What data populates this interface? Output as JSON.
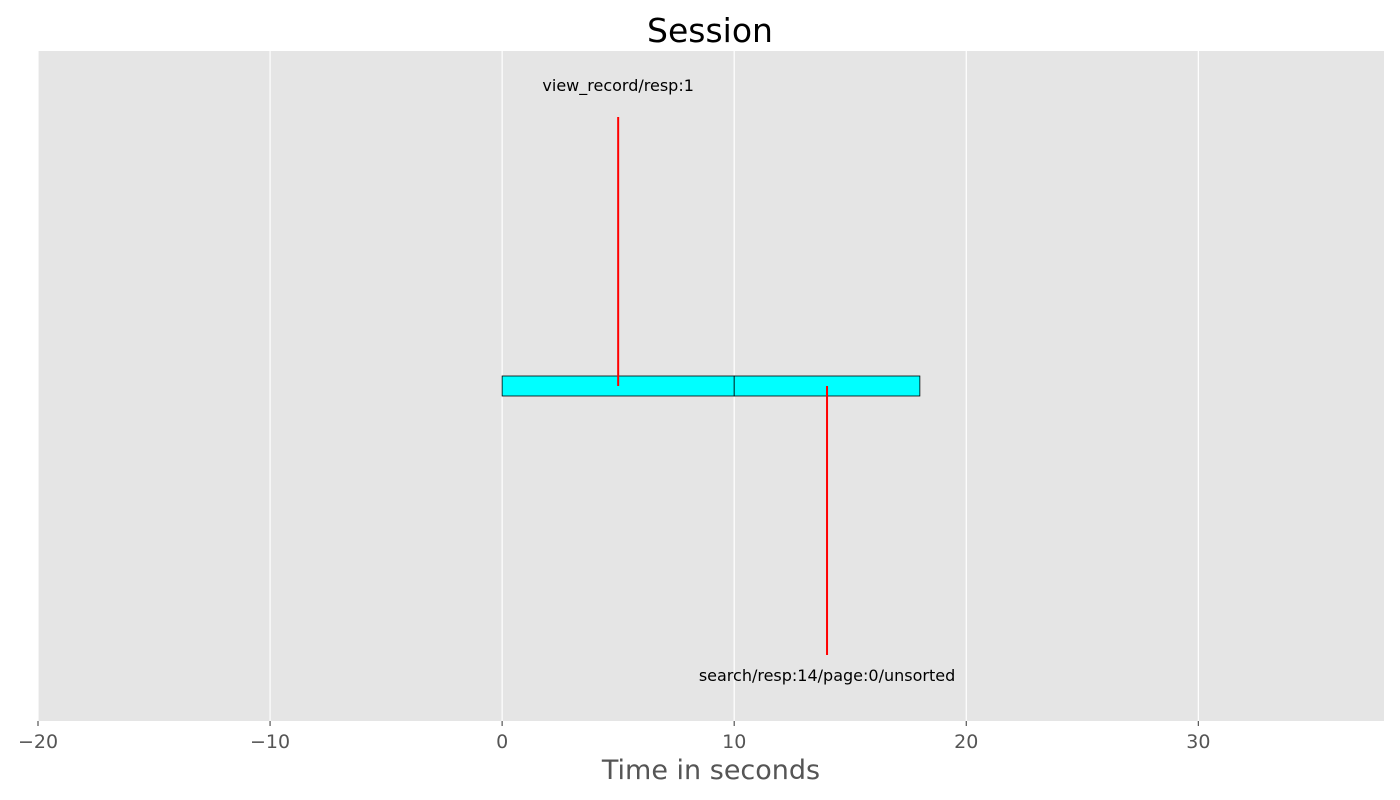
{
  "chart_data": {
    "type": "timeline",
    "title": "Session",
    "xlabel": "Time in seconds",
    "ylabel": "",
    "xlim": [
      -20,
      38
    ],
    "xticks": [
      -20,
      -10,
      0,
      10,
      20,
      30
    ],
    "xtick_labels": [
      "−20",
      "−10",
      "0",
      "10",
      "20",
      "30"
    ],
    "grid": true,
    "segments": [
      {
        "start": 0,
        "end": 10
      },
      {
        "start": 10,
        "end": 18
      }
    ],
    "events": [
      {
        "x": 5,
        "label": "view_record/resp:1",
        "direction": "up"
      },
      {
        "x": 14,
        "label": "search/resp:14/page:0/unsorted",
        "direction": "down"
      }
    ],
    "colors": {
      "background": "#e5e5e5",
      "grid": "#ffffff",
      "segment_fill": "#00ffff",
      "segment_edge": "#000000",
      "event_line": "#ff0000"
    }
  }
}
